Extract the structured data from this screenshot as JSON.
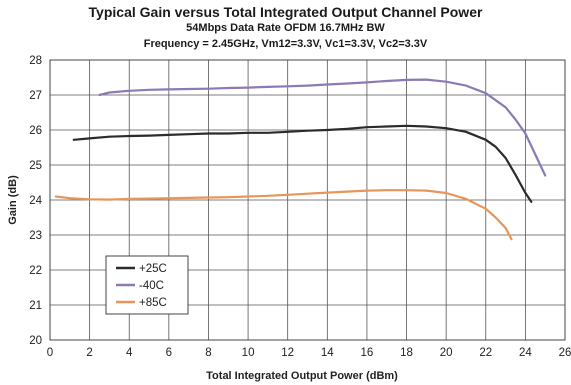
{
  "chart_data": {
    "type": "line",
    "title": "Typical Gain versus Total Integrated Output Channel Power",
    "subtitle_1": "54Mbps Data Rate OFDM 16.7MHz BW",
    "subtitle_2": "Frequency = 2.45GHz, Vm12=3.3V, Vc1=3.3V, Vc2=3.3V",
    "xlabel": "Total Integrated Output Power (dBm)",
    "ylabel": "Gain (dB)",
    "xlim": [
      0,
      26
    ],
    "ylim": [
      20,
      28
    ],
    "xticks": [
      "0",
      "2",
      "4",
      "6",
      "8",
      "10",
      "12",
      "14",
      "16",
      "18",
      "20",
      "22",
      "24",
      "26"
    ],
    "yticks": [
      "20",
      "21",
      "22",
      "23",
      "24",
      "25",
      "26",
      "27",
      "28"
    ],
    "grid": true,
    "legend_position": "bottom-left",
    "series": [
      {
        "name": "+25C",
        "color": "#2b2b2b",
        "x": [
          1.2,
          2,
          3,
          4,
          5,
          6,
          7,
          8,
          9,
          10,
          11,
          12,
          13,
          14,
          15,
          16,
          17,
          18,
          19,
          20,
          21,
          22,
          22.5,
          23,
          23.5,
          24,
          24.3
        ],
        "y": [
          25.72,
          25.76,
          25.81,
          25.83,
          25.84,
          25.86,
          25.88,
          25.9,
          25.9,
          25.92,
          25.92,
          25.95,
          25.98,
          26.0,
          26.03,
          26.08,
          26.1,
          26.12,
          26.1,
          26.05,
          25.95,
          25.72,
          25.52,
          25.2,
          24.72,
          24.2,
          23.95
        ]
      },
      {
        "name": "-40C",
        "color": "#8b7ab3",
        "x": [
          2.5,
          3,
          4,
          5,
          6,
          7,
          8,
          9,
          10,
          11,
          12,
          13,
          14,
          15,
          16,
          17,
          18,
          19,
          20,
          21,
          22,
          23,
          23.5,
          24,
          24.5,
          25.0
        ],
        "y": [
          27.0,
          27.07,
          27.12,
          27.15,
          27.16,
          27.17,
          27.18,
          27.2,
          27.21,
          27.23,
          27.25,
          27.27,
          27.3,
          27.33,
          27.36,
          27.4,
          27.43,
          27.44,
          27.38,
          27.27,
          27.05,
          26.65,
          26.3,
          25.9,
          25.3,
          24.7
        ]
      },
      {
        "name": "+85C",
        "color": "#e8955a",
        "x": [
          0.3,
          1,
          2,
          3,
          4,
          5,
          6,
          7,
          8,
          9,
          10,
          11,
          12,
          13,
          14,
          15,
          16,
          17,
          18,
          19,
          20,
          21,
          22,
          22.5,
          23,
          23.3
        ],
        "y": [
          24.1,
          24.05,
          24.02,
          24.01,
          24.03,
          24.04,
          24.05,
          24.06,
          24.07,
          24.08,
          24.1,
          24.12,
          24.15,
          24.18,
          24.21,
          24.24,
          24.27,
          24.28,
          24.28,
          24.27,
          24.2,
          24.03,
          23.75,
          23.5,
          23.2,
          22.88
        ]
      }
    ]
  }
}
